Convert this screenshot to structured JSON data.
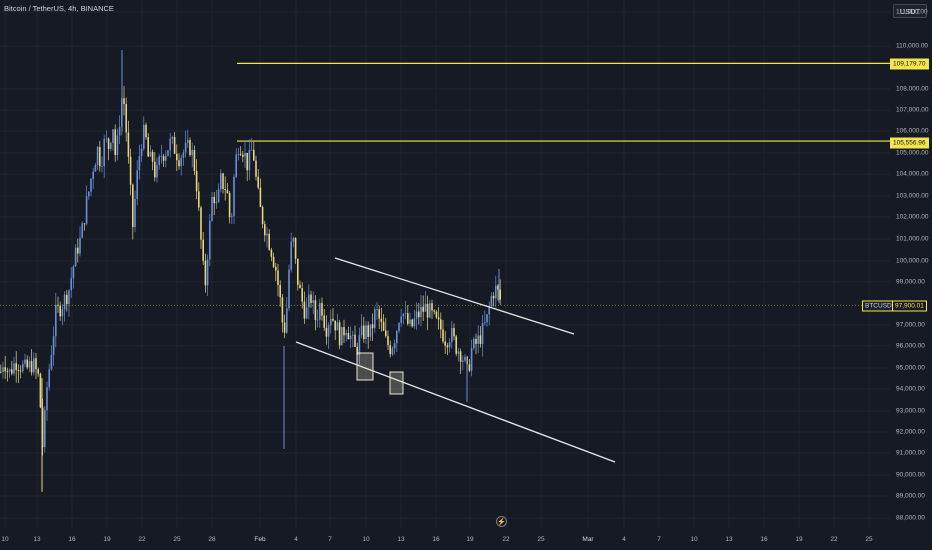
{
  "header": {
    "symbol_title": "Bitcoin / TetherUS, 4h, BINANCE"
  },
  "axis": {
    "currency": "USDT",
    "price_ticks": [
      "111,000.00",
      "110,000.00",
      "108,000.00",
      "107,000.00",
      "106,000.00",
      "105,000.00",
      "104,000.00",
      "103,000.00",
      "102,000.00",
      "101,000.00",
      "100,000.00",
      "99,000.00",
      "97,000.00",
      "96,000.00",
      "95,000.00",
      "94,000.00",
      "93,000.00",
      "92,000.00",
      "91,000.00",
      "90,000.00",
      "89,000.00",
      "88,000.00"
    ],
    "time_ticks": [
      "10",
      "13",
      "16",
      "19",
      "22",
      "25",
      "28",
      "Feb",
      "4",
      "7",
      "10",
      "13",
      "16",
      "19",
      "22",
      "25",
      "Mar",
      "4",
      "7",
      "10",
      "13",
      "16",
      "19",
      "22",
      "25"
    ]
  },
  "markers": {
    "level_high": "109,179.70",
    "level_mid": "105,556.96",
    "symbol_tag": "BTCUSDT",
    "current_price": "97,900.01"
  },
  "colors": {
    "background": "#161a25",
    "candle_up": "#6b8fd6",
    "candle_down": "#e9d57a",
    "level_line": "#f5e44a",
    "channel_line": "#e6e6e6",
    "box_fill": "#e6e6cc"
  },
  "chart_data": {
    "type": "candlestick",
    "title": "Bitcoin / TetherUS, 4h, BINANCE",
    "y_unit": "USDT",
    "ylim": [
      87500,
      111800
    ],
    "horizontal_levels": [
      109179.7,
      105556.96
    ],
    "current_price": 97900.01,
    "price_path": [
      [
        0,
        94800
      ],
      [
        3,
        95400
      ],
      [
        8,
        94700
      ],
      [
        15,
        95300
      ],
      [
        25,
        94900
      ],
      [
        32,
        95200
      ],
      [
        38,
        94500
      ],
      [
        42,
        91200
      ],
      [
        46,
        94000
      ],
      [
        50,
        95600
      ],
      [
        55,
        97500
      ],
      [
        62,
        98000
      ],
      [
        68,
        98600
      ],
      [
        72,
        99600
      ],
      [
        76,
        100500
      ],
      [
        80,
        101000
      ],
      [
        85,
        102500
      ],
      [
        88,
        103200
      ],
      [
        92,
        104300
      ],
      [
        97,
        105200
      ],
      [
        100,
        104500
      ],
      [
        104,
        105600
      ],
      [
        108,
        105300
      ],
      [
        112,
        106400
      ],
      [
        115,
        104600
      ],
      [
        118,
        106200
      ],
      [
        122,
        108000
      ],
      [
        125,
        106300
      ],
      [
        128,
        104300
      ],
      [
        132,
        101600
      ],
      [
        136,
        103800
      ],
      [
        140,
        105500
      ],
      [
        144,
        106000
      ],
      [
        148,
        104600
      ],
      [
        152,
        104700
      ],
      [
        155,
        103800
      ],
      [
        160,
        104900
      ],
      [
        165,
        105100
      ],
      [
        170,
        105500
      ],
      [
        174,
        105200
      ],
      [
        178,
        104800
      ],
      [
        184,
        105100
      ],
      [
        190,
        105300
      ],
      [
        195,
        104000
      ],
      [
        200,
        101000
      ],
      [
        204,
        98600
      ],
      [
        207,
        100500
      ],
      [
        212,
        103300
      ],
      [
        216,
        102400
      ],
      [
        220,
        103700
      ],
      [
        226,
        103300
      ],
      [
        230,
        101500
      ],
      [
        234,
        104400
      ],
      [
        238,
        105500
      ],
      [
        242,
        105200
      ],
      [
        247,
        104400
      ],
      [
        252,
        105300
      ],
      [
        256,
        103400
      ],
      [
        260,
        102200
      ],
      [
        265,
        101400
      ],
      [
        270,
        100600
      ],
      [
        275,
        99600
      ],
      [
        279,
        98300
      ],
      [
        283,
        96500
      ],
      [
        286,
        97800
      ],
      [
        289,
        100200
      ],
      [
        292,
        101100
      ],
      [
        296,
        99300
      ],
      [
        300,
        98300
      ],
      [
        305,
        97500
      ],
      [
        310,
        98300
      ],
      [
        315,
        97200
      ],
      [
        320,
        98100
      ],
      [
        325,
        96800
      ],
      [
        330,
        97500
      ],
      [
        335,
        97000
      ],
      [
        340,
        96300
      ],
      [
        345,
        97000
      ],
      [
        350,
        96400
      ],
      [
        355,
        95700
      ],
      [
        360,
        96500
      ],
      [
        365,
        96700
      ],
      [
        370,
        96600
      ],
      [
        375,
        97700
      ],
      [
        380,
        97000
      ],
      [
        385,
        96200
      ],
      [
        390,
        95900
      ],
      [
        395,
        96600
      ],
      [
        400,
        97800
      ],
      [
        405,
        97200
      ],
      [
        410,
        96800
      ],
      [
        415,
        97300
      ],
      [
        420,
        97600
      ],
      [
        425,
        97800
      ],
      [
        430,
        97500
      ],
      [
        435,
        97100
      ],
      [
        440,
        96800
      ],
      [
        445,
        96300
      ],
      [
        450,
        96600
      ],
      [
        455,
        96000
      ],
      [
        460,
        95700
      ],
      [
        464,
        95200
      ],
      [
        467,
        94600
      ],
      [
        470,
        95800
      ],
      [
        474,
        96000
      ],
      [
        478,
        96300
      ],
      [
        482,
        96700
      ],
      [
        486,
        97200
      ],
      [
        490,
        98200
      ],
      [
        494,
        98700
      ],
      [
        498,
        98400
      ],
      [
        501,
        97900
      ]
    ],
    "boxes": [
      {
        "x_start": "~Feb 9",
        "x_end": "~Feb 11",
        "y_low": 94700,
        "y_high": 96100
      },
      {
        "x_start": "~Feb 13",
        "x_end": "~Feb 14",
        "y_low": 94000,
        "y_high": 95000
      }
    ],
    "channel": {
      "upper": {
        "from": [
          "~Feb 8",
          100100
        ],
        "to": [
          "~Feb 27",
          96600
        ]
      },
      "lower": {
        "from": [
          "~Feb 4",
          96700
        ],
        "to": [
          "~Mar 4",
          90600
        ]
      }
    }
  }
}
